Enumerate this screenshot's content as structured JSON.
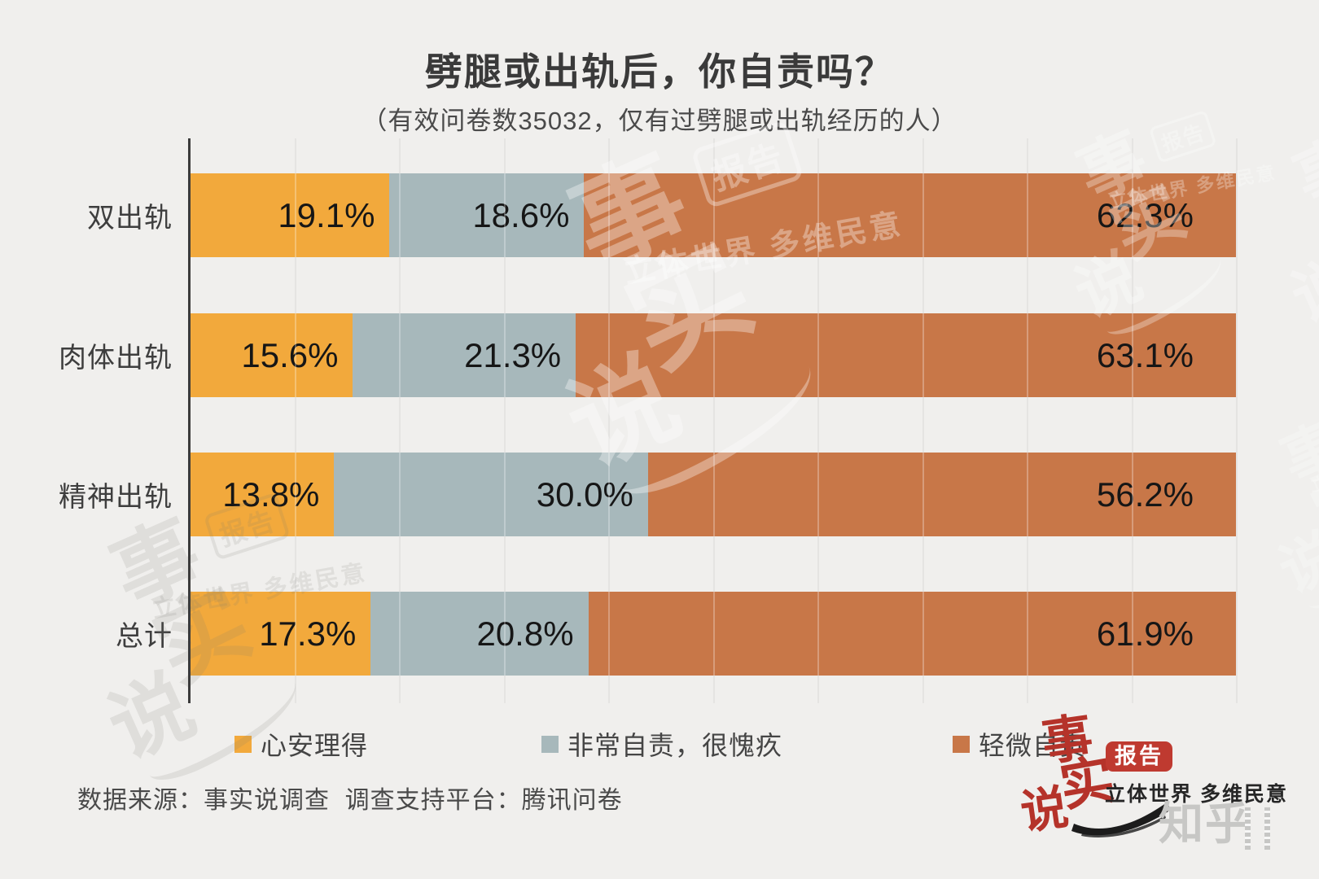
{
  "title": "劈腿或出轨后，你自责吗？",
  "subtitle": "（有效问卷数35032，仅有过劈腿或出轨经历的人）",
  "source_note": "数据来源：事实说调查  调查支持平台：腾讯问卷",
  "chart_data": {
    "type": "bar",
    "orientation": "horizontal",
    "stacked": true,
    "title": "劈腿或出轨后，你自责吗？",
    "subtitle": "（有效问卷数35032，仅有过劈腿或出轨经历的人）",
    "categories": [
      "双出轨",
      "肉体出轨",
      "精神出轨",
      "总计"
    ],
    "series": [
      {
        "name": "心安理得",
        "color": "#F2A93C",
        "values": [
          19.1,
          15.6,
          13.8,
          17.3
        ]
      },
      {
        "name": "非常自责，很愧疚",
        "color": "#A7B8BB",
        "values": [
          18.6,
          21.3,
          30.0,
          20.8
        ]
      },
      {
        "name": "轻微自责",
        "color": "#C87748",
        "values": [
          62.3,
          63.1,
          56.2,
          61.9
        ]
      }
    ],
    "value_suffix": "%",
    "xlim": [
      0,
      100
    ],
    "gridline_step_percent": 10,
    "legend_position": "bottom",
    "value_labels": "inside-right"
  },
  "branding": {
    "brand_chars": [
      "事",
      "实",
      "说"
    ],
    "badge_label": "报告",
    "tagline": "立体世界 多维民意",
    "zhihu_label": "知乎"
  },
  "watermark": {
    "chars": [
      "事",
      "实",
      "说"
    ],
    "badge_label": "报告",
    "tagline": "立体世界 多维民意"
  },
  "colors": {
    "background": "#F0EFED",
    "axis": "#3B3B3B",
    "gridline": "#DBDAD7",
    "category_label": "#3E3E3E",
    "value_label": "#161616",
    "legend_label": "#454545",
    "title": "#3A3A3A",
    "source": "#4A4A4A",
    "logo_red": "#B5332A",
    "zhihu_gray": "#C7C7C5"
  }
}
